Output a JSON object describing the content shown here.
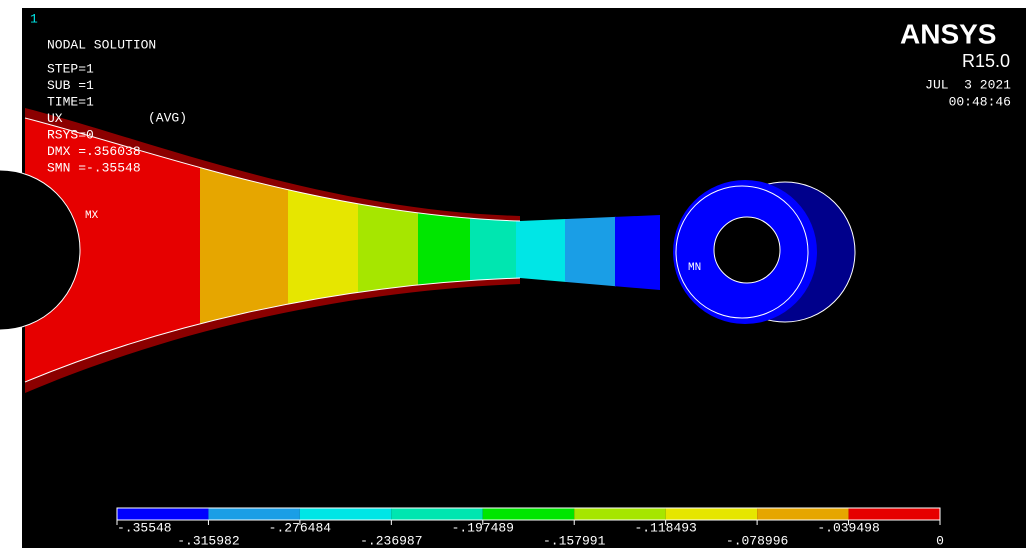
{
  "window_id": "1",
  "header": {
    "title": "NODAL SOLUTION",
    "lines": [
      "STEP=1",
      "SUB =1",
      "TIME=1",
      "UX",
      "RSYS=0",
      "DMX =.356038",
      "SMN =-.35548"
    ],
    "avg": "(AVG)"
  },
  "brand": {
    "name": "ANSYS",
    "release": "R15.0",
    "date": "JUL  3 2021",
    "time": "00:48:46"
  },
  "markers": {
    "max": "MX",
    "min": "MN"
  },
  "legend": {
    "colors": [
      "#0000ff",
      "#1a9ee6",
      "#00e6e6",
      "#00e6b0",
      "#00e600",
      "#a6e600",
      "#e6e600",
      "#e6a600",
      "#e60000"
    ],
    "labels": [
      "-.35548",
      "-.315982",
      "-.276484",
      "-.236987",
      "-.197489",
      "-.157991",
      "-.118493",
      "-.078996",
      "-.039498",
      "0"
    ]
  }
}
